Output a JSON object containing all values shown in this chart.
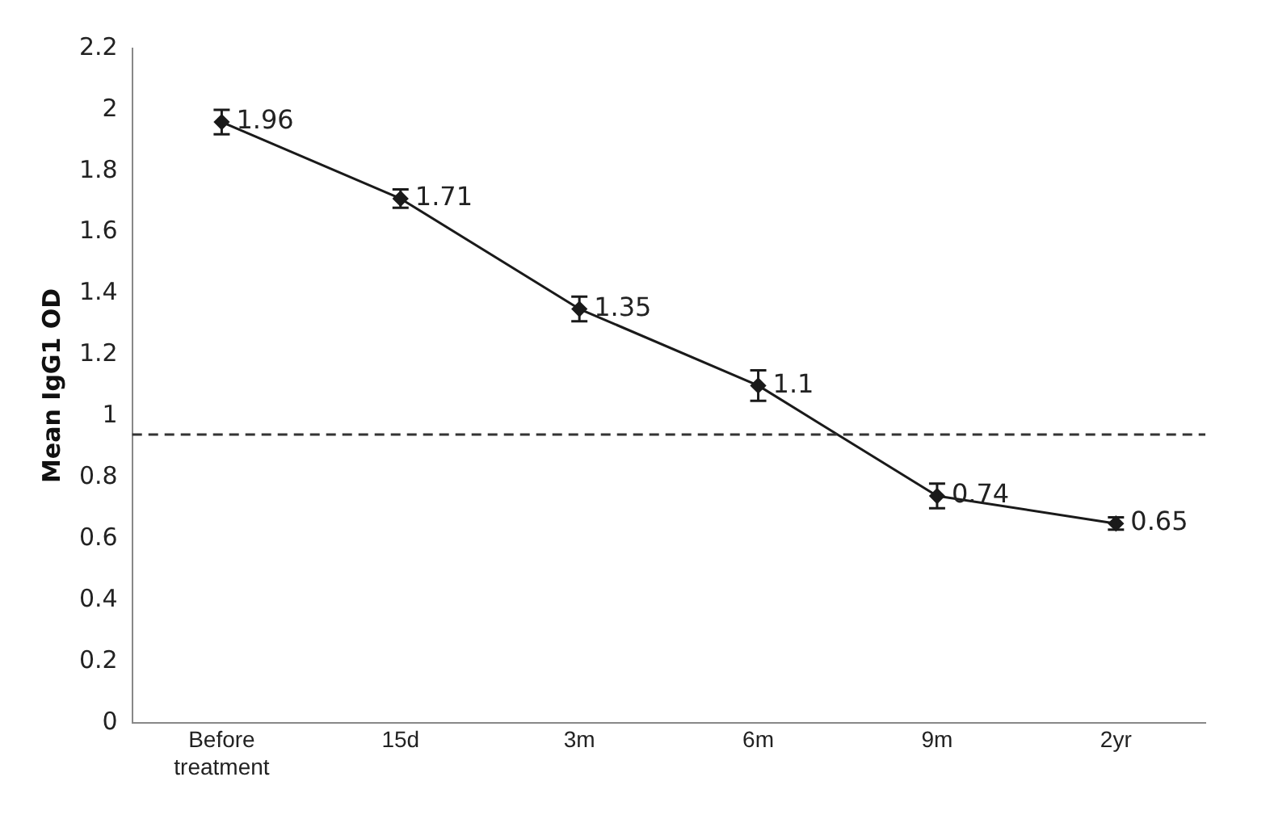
{
  "chart_data": {
    "type": "line",
    "ylabel": "Mean IgG1 OD",
    "categories": [
      "Before treatment",
      "15d",
      "3m",
      "6m",
      "9m",
      "2yr"
    ],
    "series": [
      {
        "color": "#1a1a1a",
        "values": [
          1.96,
          1.71,
          1.35,
          1.1,
          0.74,
          0.65
        ],
        "errors": [
          0.04,
          0.03,
          0.04,
          0.05,
          0.04,
          0.02
        ]
      }
    ],
    "ylim": [
      0,
      2.2
    ],
    "yticks": [
      0,
      0.2,
      0.4,
      0.6,
      0.8,
      1,
      1.2,
      1.4,
      1.6,
      1.8,
      2,
      2.2
    ],
    "ref_lines": [
      {
        "axis": "y",
        "value": 0.94,
        "line_style": "dashed",
        "color": "#333333"
      }
    ],
    "data_labels": true,
    "grid": false,
    "legend": false,
    "marker": "diamond",
    "line_style": "solid"
  }
}
